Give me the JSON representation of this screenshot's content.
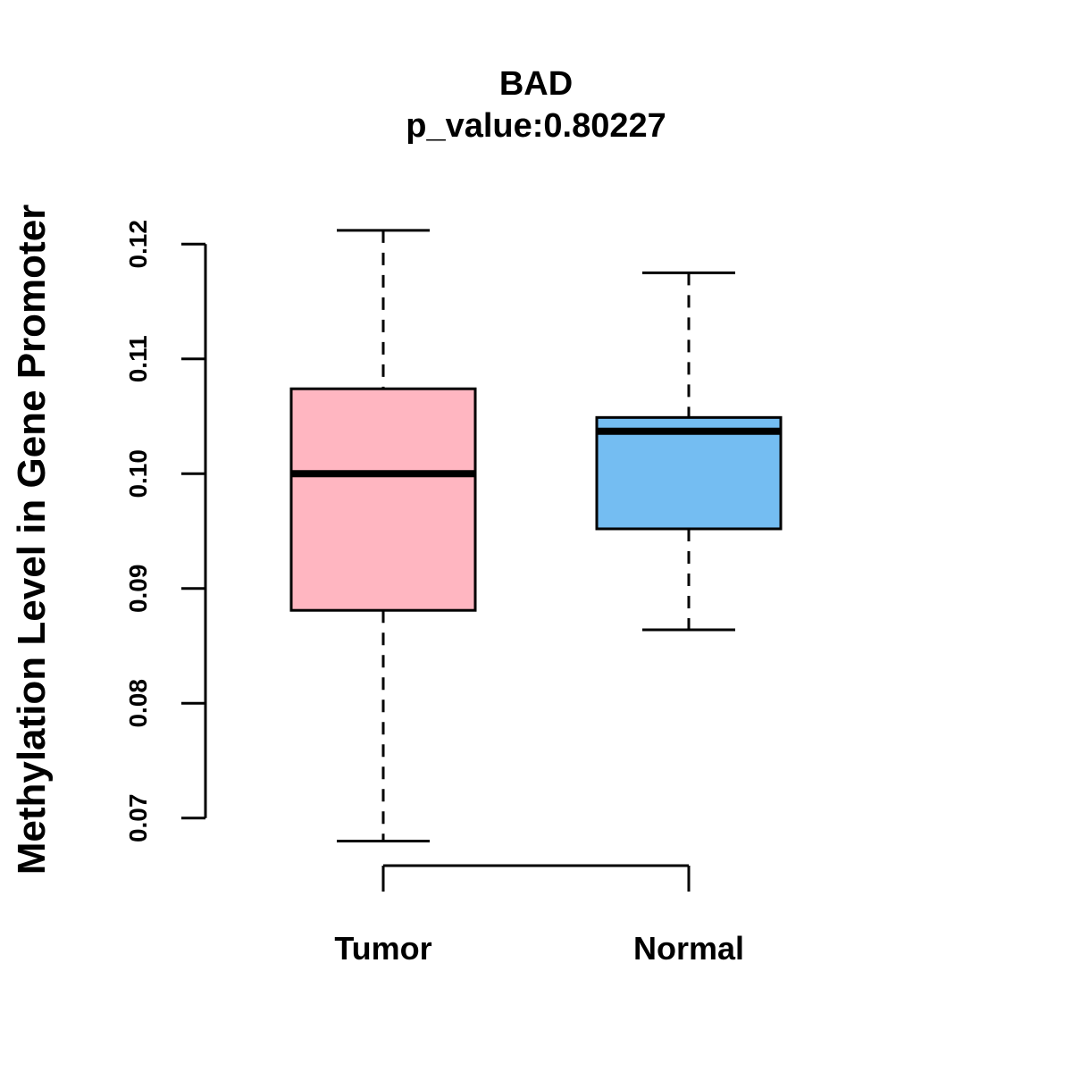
{
  "title": "BAD",
  "subtitle": "p_value:0.80227",
  "y_axis": {
    "label": "Methylation Level in Gene Promoter",
    "tick_labels": [
      "0.07",
      "0.08",
      "0.09",
      "0.10",
      "0.11",
      "0.12"
    ]
  },
  "x_axis": {
    "categories": [
      "Tumor",
      "Normal"
    ]
  },
  "chart_data": {
    "type": "boxplot",
    "title": "BAD",
    "subtitle": "p_value:0.80227",
    "ylabel": "Methylation Level in Gene Promoter",
    "xlabel": "",
    "ylim": [
      0.07,
      0.12
    ],
    "yticks": [
      0.07,
      0.08,
      0.09,
      0.1,
      0.11,
      0.12
    ],
    "ytick_labels": [
      "0.07",
      "0.08",
      "0.09",
      "0.10",
      "0.11",
      "0.12"
    ],
    "grid": "off",
    "legend": "none",
    "categories": [
      "Tumor",
      "Normal"
    ],
    "series": [
      {
        "name": "Tumor",
        "color": "#FFB6C1",
        "whisker_low": 0.068,
        "q1": 0.0881,
        "median": 0.1,
        "q3": 0.1074,
        "whisker_high": 0.1212
      },
      {
        "name": "Normal",
        "color": "#74BDF2",
        "whisker_low": 0.0864,
        "q1": 0.0952,
        "median": 0.1037,
        "q3": 0.1049,
        "whisker_high": 0.1175
      }
    ],
    "colors": {
      "tumor_fill": "#FFB6C1",
      "normal_fill": "#74BDF2",
      "stroke": "#000000",
      "background": "#FFFFFF"
    }
  }
}
